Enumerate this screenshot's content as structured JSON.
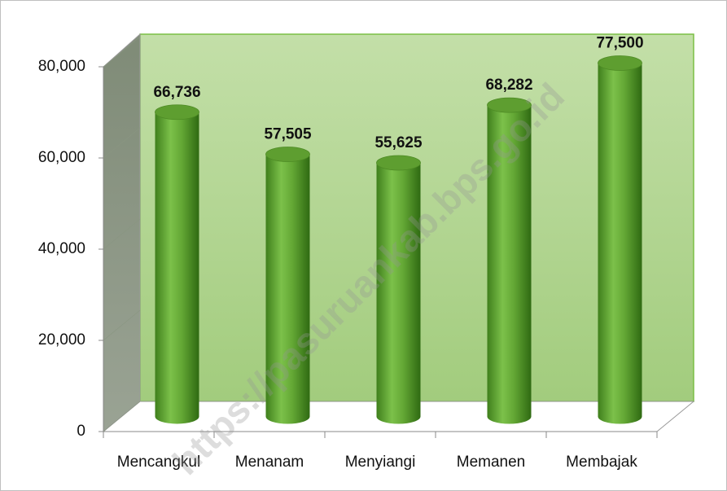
{
  "chart_data": {
    "type": "bar",
    "style": "3d-cylinder",
    "categories": [
      "Mencangkul",
      "Menanam",
      "Menyiangi",
      "Memanen",
      "Membajak"
    ],
    "values": [
      66736,
      57505,
      55625,
      68282,
      77500
    ],
    "value_labels": [
      "66,736",
      "57,505",
      "55,625",
      "68,282",
      "77,500"
    ],
    "color": "#6aaa3a",
    "ylim": [
      0,
      80000
    ],
    "yticks": [
      0,
      {
        "value": 20000,
        "label": "20,000"
      },
      {
        "value": 40000,
        "label": "40,000"
      },
      {
        "value": 60000,
        "label": "60,000"
      },
      {
        "value": 80000,
        "label": "80,000"
      }
    ],
    "grid": false,
    "watermark": "https://pasuruankab.bps.go.id"
  }
}
